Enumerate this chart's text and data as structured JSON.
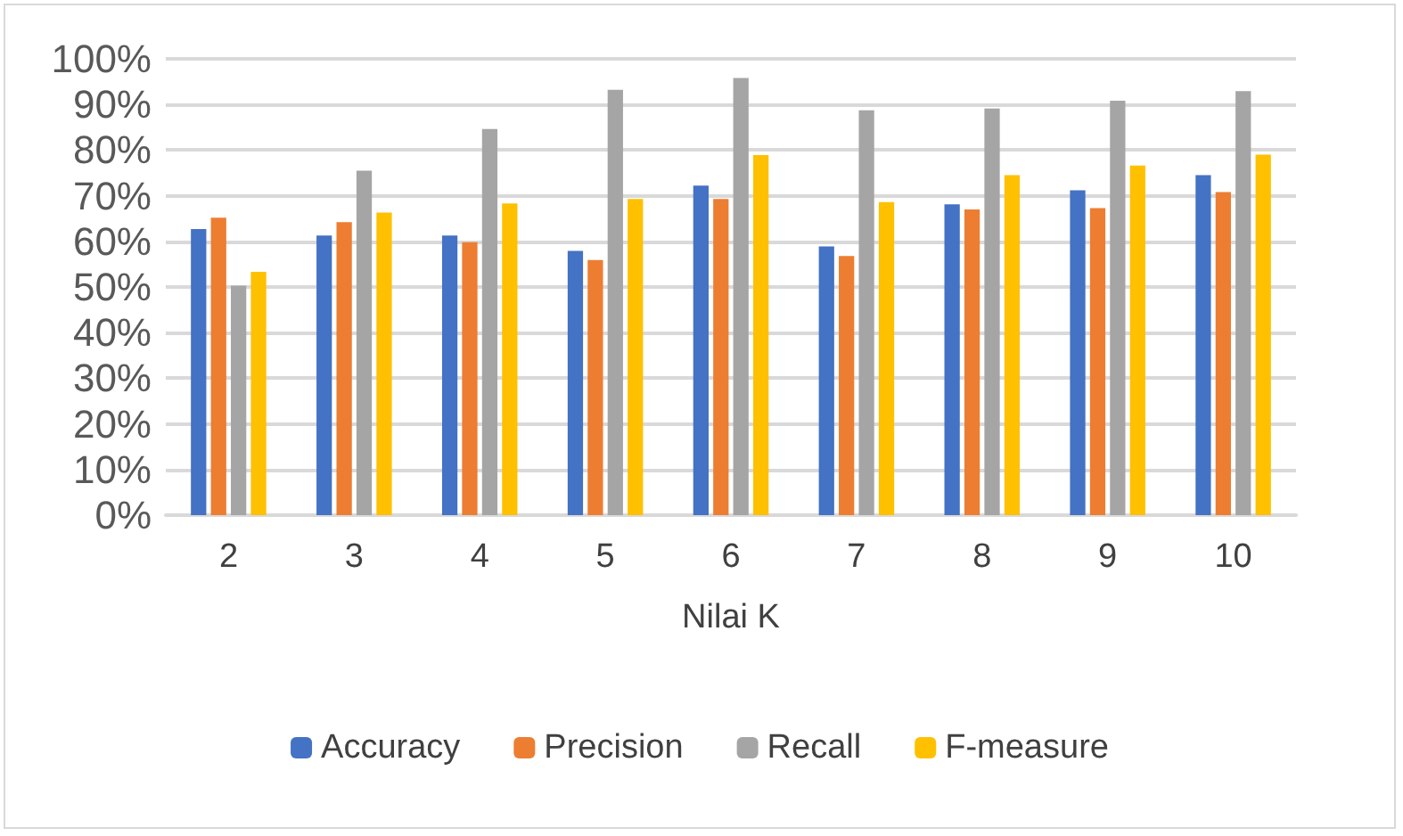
{
  "chart_data": {
    "type": "bar",
    "xlabel": "Nilai K",
    "categories": [
      "2",
      "3",
      "4",
      "5",
      "6",
      "7",
      "8",
      "9",
      "10"
    ],
    "series": [
      {
        "name": "Accuracy",
        "color": "#4472c4",
        "values": [
          62.7,
          61.3,
          61.3,
          57.9,
          72.2,
          58.9,
          68.1,
          71.2,
          74.5
        ]
      },
      {
        "name": "Precision",
        "color": "#ed7d31",
        "values": [
          65.2,
          64.2,
          59.8,
          55.9,
          69.3,
          56.8,
          67.0,
          67.3,
          70.8
        ]
      },
      {
        "name": "Recall",
        "color": "#a5a5a5",
        "values": [
          50.3,
          75.5,
          84.6,
          93.2,
          95.8,
          88.7,
          89.1,
          90.8,
          92.9
        ]
      },
      {
        "name": "F-measure",
        "color": "#ffc000",
        "values": [
          53.3,
          66.3,
          68.3,
          69.3,
          78.9,
          68.6,
          74.5,
          76.6,
          79.0
        ]
      }
    ],
    "ylim": [
      0,
      100
    ],
    "yticks": [
      {
        "value": 0,
        "label": "0%"
      },
      {
        "value": 10,
        "label": "10%"
      },
      {
        "value": 20,
        "label": "20%"
      },
      {
        "value": 30,
        "label": "30%"
      },
      {
        "value": 40,
        "label": "40%"
      },
      {
        "value": 50,
        "label": "50%"
      },
      {
        "value": 60,
        "label": "60%"
      },
      {
        "value": 70,
        "label": "70%"
      },
      {
        "value": 80,
        "label": "80%"
      },
      {
        "value": 90,
        "label": "90%"
      },
      {
        "value": 100,
        "label": "100%"
      }
    ],
    "grid": "y",
    "legend": "bottom"
  }
}
